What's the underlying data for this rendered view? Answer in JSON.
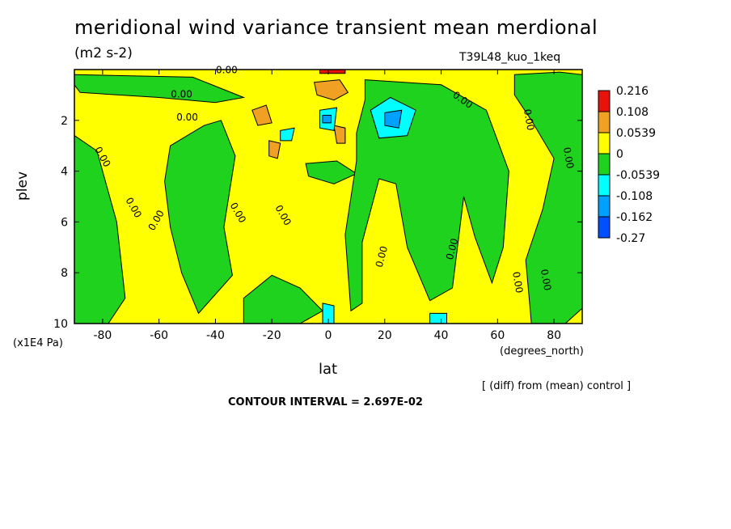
{
  "chart_data": {
    "type": "heatmap",
    "title": "meridional wind variance transient mean merdional",
    "units": "(m2 s-2)",
    "run_name": "T39L48_kuo_1keq",
    "xlabel": "lat",
    "x_unit": "(degrees_north)",
    "ylabel": "plev",
    "y_unit": "(x1E4 Pa)",
    "xlim": [
      -90,
      90
    ],
    "ylim": [
      10,
      0
    ],
    "x_ticks": [
      -80,
      -60,
      -40,
      -20,
      0,
      20,
      40,
      60,
      80
    ],
    "x_tick_labels": [
      "-80",
      "-60",
      "-40",
      "-20",
      "0",
      "20",
      "40",
      "60",
      "80"
    ],
    "y_ticks": [
      2,
      4,
      6,
      8,
      10
    ],
    "y_tick_labels": [
      "2",
      "4",
      "6",
      "8",
      "10"
    ],
    "contour_interval_text": "CONTOUR INTERVAL = 2.697E-02",
    "diff_note": "[ (diff) from (mean) control ]",
    "contour_label": "0.00",
    "legend": {
      "levels": [
        "0.216",
        "0.108",
        "0.0539",
        "0",
        "-0.0539",
        "-0.108",
        "-0.162",
        "-0.27"
      ],
      "colors": [
        "#e8120c",
        "#f0a023",
        "#ffff00",
        "#1ed21e",
        "#00ffff",
        "#00a0ff",
        "#0050ff"
      ]
    },
    "regions": [
      {
        "name": "positive-band-nh",
        "value": 0.02,
        "color": "#ffff00",
        "poly": [
          [
            -90,
            0
          ],
          [
            90,
            0
          ],
          [
            90,
            10
          ],
          [
            -90,
            10
          ]
        ]
      },
      {
        "name": "negative-top-band",
        "value": -0.02,
        "color": "#1ed21e",
        "poly": [
          [
            -90,
            0.2
          ],
          [
            -48,
            0.3
          ],
          [
            -30,
            1.1
          ],
          [
            -40,
            1.3
          ],
          [
            -60,
            1.1
          ],
          [
            -88,
            0.9
          ],
          [
            -90,
            0.6
          ]
        ]
      },
      {
        "name": "negative-sh-column-1",
        "value": -0.02,
        "color": "#1ed21e",
        "poly": [
          [
            -90,
            2.6
          ],
          [
            -82,
            3.2
          ],
          [
            -75,
            6.0
          ],
          [
            -72,
            9.0
          ],
          [
            -78,
            10
          ],
          [
            -90,
            10
          ]
        ]
      },
      {
        "name": "negative-sh-column-2",
        "value": -0.02,
        "color": "#1ed21e",
        "poly": [
          [
            -56,
            3.0
          ],
          [
            -44,
            2.2
          ],
          [
            -38,
            2.0
          ],
          [
            -33,
            3.4
          ],
          [
            -37,
            6.2
          ],
          [
            -34,
            8.1
          ],
          [
            -46,
            9.6
          ],
          [
            -52,
            8.0
          ],
          [
            -56,
            6.2
          ],
          [
            -58,
            4.4
          ]
        ]
      },
      {
        "name": "negative-sh-column-3",
        "value": -0.02,
        "color": "#1ed21e",
        "poly": [
          [
            -30,
            9.0
          ],
          [
            -20,
            8.1
          ],
          [
            -10,
            8.6
          ],
          [
            -2,
            9.5
          ],
          [
            -10,
            10
          ],
          [
            -30,
            10
          ]
        ]
      },
      {
        "name": "negative-mid-blob",
        "value": -0.02,
        "color": "#1ed21e",
        "poly": [
          [
            -8,
            3.7
          ],
          [
            3,
            3.6
          ],
          [
            10,
            4.1
          ],
          [
            2,
            4.5
          ],
          [
            -7,
            4.2
          ]
        ]
      },
      {
        "name": "negative-nh-column",
        "value": -0.02,
        "color": "#1ed21e",
        "poly": [
          [
            13,
            0.4
          ],
          [
            40,
            0.6
          ],
          [
            56,
            1.6
          ],
          [
            64,
            4.0
          ],
          [
            62,
            7.0
          ],
          [
            58,
            8.4
          ],
          [
            52,
            6.6
          ],
          [
            48,
            5.0
          ],
          [
            44,
            8.6
          ],
          [
            36,
            9.1
          ],
          [
            28,
            7.0
          ],
          [
            24,
            4.5
          ],
          [
            18,
            4.3
          ],
          [
            12,
            6.8
          ],
          [
            12,
            9.2
          ],
          [
            8,
            9.5
          ],
          [
            6,
            6.5
          ],
          [
            10,
            3.6
          ],
          [
            10,
            2.5
          ],
          [
            13,
            1.2
          ]
        ]
      },
      {
        "name": "negative-nh-edge",
        "value": -0.02,
        "color": "#1ed21e",
        "poly": [
          [
            66,
            0.2
          ],
          [
            82,
            0.1
          ],
          [
            90,
            0.2
          ],
          [
            90,
            9.4
          ],
          [
            84,
            10
          ],
          [
            72,
            10
          ],
          [
            70,
            7.5
          ],
          [
            76,
            5.5
          ],
          [
            80,
            3.5
          ],
          [
            72,
            2.0
          ],
          [
            66,
            1.0
          ]
        ]
      },
      {
        "name": "positive-peak-top",
        "value": 0.216,
        "color": "#e8120c",
        "poly": [
          [
            -3,
            0.0
          ],
          [
            6,
            0.0
          ],
          [
            6,
            0.15
          ],
          [
            -3,
            0.15
          ]
        ]
      },
      {
        "name": "positive-orange-top",
        "value": 0.08,
        "color": "#f0a023",
        "poly": [
          [
            -5,
            0.5
          ],
          [
            4,
            0.4
          ],
          [
            7,
            0.9
          ],
          [
            2,
            1.2
          ],
          [
            -4,
            1.0
          ]
        ]
      },
      {
        "name": "positive-orange-sh",
        "value": 0.08,
        "color": "#f0a023",
        "poly": [
          [
            -27,
            1.6
          ],
          [
            -22,
            1.4
          ],
          [
            -20,
            2.1
          ],
          [
            -25,
            2.2
          ]
        ]
      },
      {
        "name": "positive-orange-sh-2",
        "value": 0.08,
        "color": "#f0a023",
        "poly": [
          [
            -21,
            2.8
          ],
          [
            -17,
            2.9
          ],
          [
            -18,
            3.5
          ],
          [
            -21,
            3.4
          ]
        ]
      },
      {
        "name": "positive-orange-eq",
        "value": 0.08,
        "color": "#f0a023",
        "poly": [
          [
            2,
            2.2
          ],
          [
            6,
            2.3
          ],
          [
            6,
            2.9
          ],
          [
            3,
            2.9
          ]
        ]
      },
      {
        "name": "negative-cyan-eq",
        "value": -0.08,
        "color": "#00ffff",
        "poly": [
          [
            -3,
            1.6
          ],
          [
            3,
            1.5
          ],
          [
            2,
            2.4
          ],
          [
            -3,
            2.3
          ]
        ]
      },
      {
        "name": "negative-cyan-sh",
        "value": -0.08,
        "color": "#00ffff",
        "poly": [
          [
            -17,
            2.4
          ],
          [
            -12,
            2.3
          ],
          [
            -13,
            2.8
          ],
          [
            -17,
            2.8
          ]
        ]
      },
      {
        "name": "negative-cyan-nh",
        "value": -0.08,
        "color": "#00ffff",
        "poly": [
          [
            15,
            1.6
          ],
          [
            22,
            1.1
          ],
          [
            31,
            1.6
          ],
          [
            28,
            2.6
          ],
          [
            18,
            2.7
          ]
        ]
      },
      {
        "name": "negative-blue-nh",
        "value": -0.13,
        "color": "#00a0ff",
        "poly": [
          [
            20,
            1.7
          ],
          [
            26,
            1.6
          ],
          [
            25,
            2.3
          ],
          [
            20,
            2.2
          ]
        ]
      },
      {
        "name": "negative-blue-eq",
        "value": -0.13,
        "color": "#00a0ff",
        "poly": [
          [
            -2,
            1.8
          ],
          [
            1,
            1.8
          ],
          [
            1,
            2.1
          ],
          [
            -2,
            2.1
          ]
        ]
      },
      {
        "name": "negative-cyan-bottom-eq",
        "value": -0.08,
        "color": "#00ffff",
        "poly": [
          [
            -2,
            9.2
          ],
          [
            2,
            9.3
          ],
          [
            2,
            10
          ],
          [
            -2,
            10
          ]
        ]
      },
      {
        "name": "negative-cyan-bottom-40",
        "value": -0.08,
        "color": "#00ffff",
        "poly": [
          [
            36,
            9.6
          ],
          [
            42,
            9.6
          ],
          [
            42,
            10
          ],
          [
            36,
            10
          ]
        ]
      }
    ]
  }
}
